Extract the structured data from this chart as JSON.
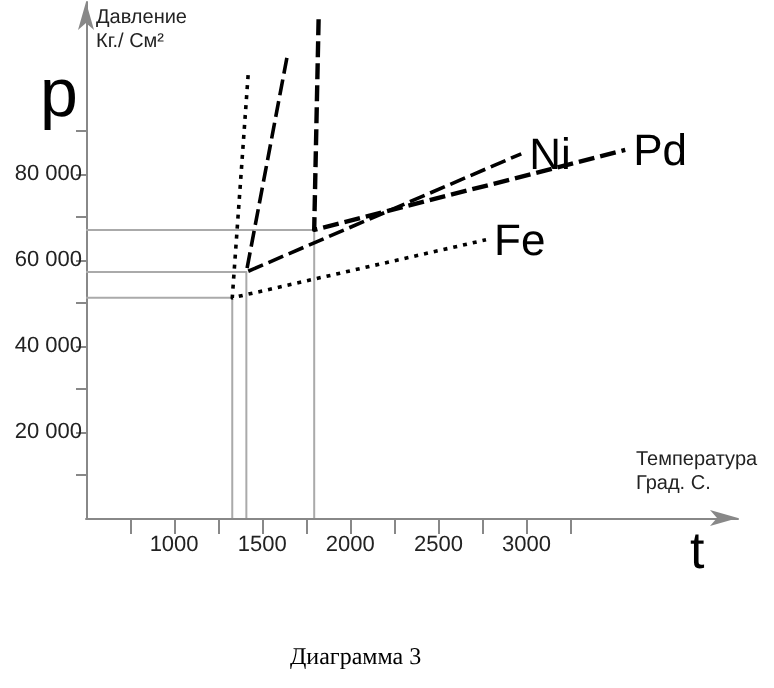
{
  "chart_data": {
    "type": "line",
    "xlabel": "Температура\nГрад. С.",
    "ylabel": "Давление\nКг./ См²",
    "annotations": [
      "p",
      "t",
      "Диаграмма 3"
    ],
    "xlim": [
      500,
      4200
    ],
    "ylim": [
      0,
      120000
    ],
    "xticks": [
      {
        "value": 750,
        "label": null
      },
      {
        "value": 1000,
        "label": "1000"
      },
      {
        "value": 1250,
        "label": null
      },
      {
        "value": 1500,
        "label": "1500"
      },
      {
        "value": 1750,
        "label": null
      },
      {
        "value": 2000,
        "label": "2000"
      },
      {
        "value": 2250,
        "label": null
      },
      {
        "value": 2500,
        "label": "2500"
      },
      {
        "value": 2750,
        "label": null
      },
      {
        "value": 3000,
        "label": "3000"
      },
      {
        "value": 3250,
        "label": null
      }
    ],
    "yticks": [
      {
        "value": 10000,
        "label": null
      },
      {
        "value": 20000,
        "label": "20 000"
      },
      {
        "value": 30000,
        "label": null
      },
      {
        "value": 40000,
        "label": "40 000"
      },
      {
        "value": 50000,
        "label": null
      },
      {
        "value": 60000,
        "label": "60 000"
      },
      {
        "value": 70000,
        "label": null
      },
      {
        "value": 80000,
        "label": "80 000"
      },
      {
        "value": 90000,
        "label": null
      }
    ],
    "grid": false,
    "legend": false,
    "marker": "none",
    "series": [
      {
        "color": "#aaaaaa",
        "line_style": "solid",
        "x": [
          500,
          1330,
          1330
        ],
        "values": [
          51200,
          51200,
          0
        ]
      },
      {
        "color": "#aaaaaa",
        "line_style": "solid",
        "x": [
          500,
          1410,
          1410
        ],
        "values": [
          57200,
          57200,
          0
        ]
      },
      {
        "color": "#aaaaaa",
        "line_style": "solid",
        "x": [
          500,
          1795,
          1795
        ],
        "values": [
          67000,
          67000,
          0
        ]
      },
      {
        "name": "Fe",
        "color": "#000000",
        "line_style": "dotted",
        "x": [
          1420,
          1330,
          2770
        ],
        "values": [
          103000,
          51200,
          64700
        ]
      },
      {
        "name": "Ni",
        "color": "#000000",
        "line_style": "dashed",
        "x": [
          1640,
          1410,
          2970
        ],
        "values": [
          107000,
          57200,
          84700
        ]
      },
      {
        "name": "Pd",
        "color": "#000000",
        "line_style": "dashed",
        "x": [
          1820,
          1795,
          3560
        ],
        "values": [
          116000,
          67000,
          85600
        ]
      }
    ]
  }
}
